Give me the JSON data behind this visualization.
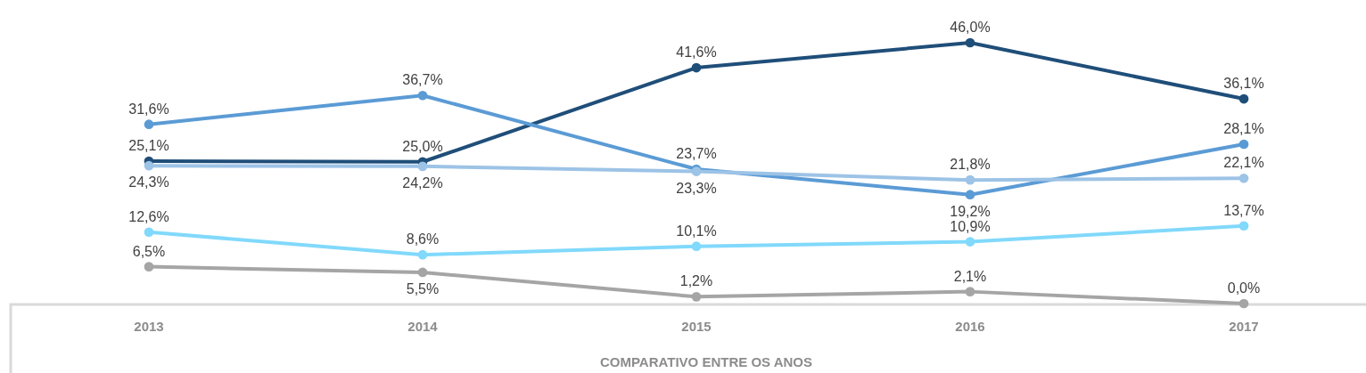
{
  "chart_data": {
    "type": "line",
    "xlabel": "COMPARATIVO ENTRE OS ANOS",
    "categories": [
      "2013",
      "2014",
      "2015",
      "2016",
      "2017"
    ],
    "marker": "circle",
    "grid": false,
    "tick_labels": "x",
    "series": [
      {
        "color": "#1f4e79",
        "values": [
          25.1,
          25.0,
          41.6,
          46.0,
          36.1
        ],
        "value_labels": [
          "25,1%",
          "25,0%",
          "41,6%",
          "46,0%",
          "36,1%"
        ]
      },
      {
        "color": "#5b9bd5",
        "values": [
          31.6,
          36.7,
          23.7,
          19.2,
          28.1
        ],
        "value_labels": [
          "31,6%",
          "36,7%",
          "23,7%",
          "19,2%",
          "28,1%"
        ]
      },
      {
        "color": "#9dc3e6",
        "values": [
          24.3,
          24.2,
          23.3,
          21.8,
          22.1
        ],
        "value_labels": [
          "24,3%",
          "24,2%",
          "23,3%",
          "21,8%",
          "22,1%"
        ]
      },
      {
        "color": "#81d9fb",
        "values": [
          12.6,
          8.6,
          10.1,
          10.9,
          13.7
        ],
        "value_labels": [
          "12,6%",
          "8,6%",
          "10,1%",
          "10,9%",
          "13,7%"
        ]
      },
      {
        "color": "#a5a5a5",
        "values": [
          6.5,
          5.5,
          1.2,
          2.1,
          0.0
        ],
        "value_labels": [
          "6,5%",
          "5,5%",
          "1,2%",
          "2,1%",
          "0,0%"
        ]
      }
    ]
  }
}
